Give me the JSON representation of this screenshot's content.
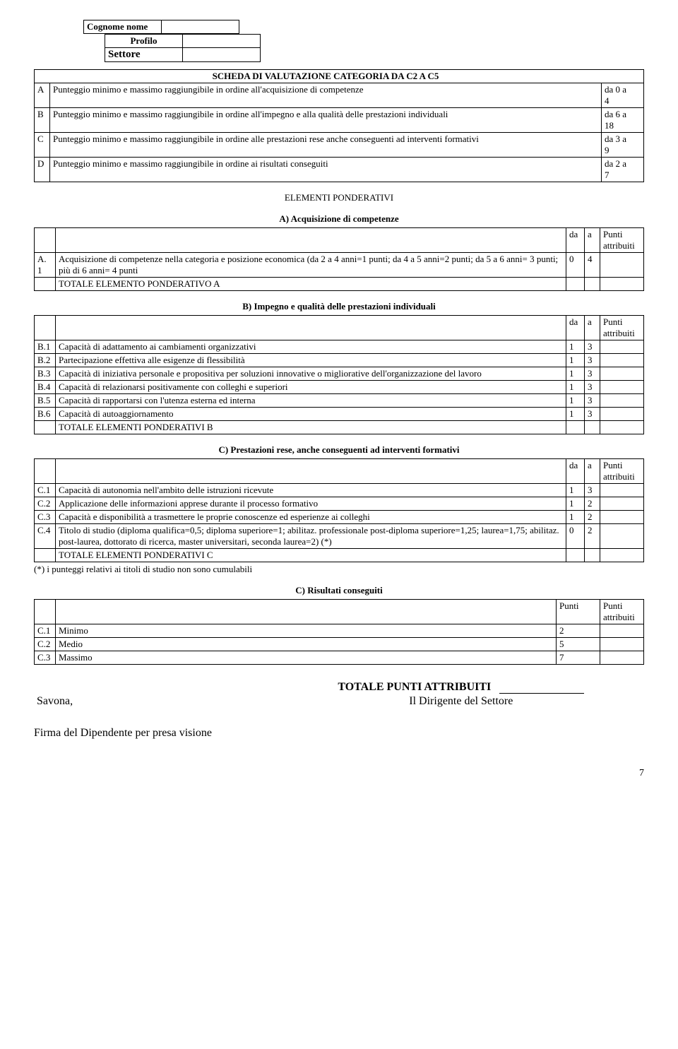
{
  "header": {
    "cognome_label": "Cognome nome",
    "profilo_label": "Profilo",
    "settore_label": "Settore",
    "cognome_val": "",
    "profilo_val": "",
    "settore_val": ""
  },
  "title": "SCHEDA DI VALUTAZIONE CATEGORIA DA C2 A C5",
  "criteria": [
    {
      "id": "A",
      "text": "Punteggio minimo e massimo raggiungibile in ordine all'acquisizione di competenze",
      "range": "da 0 a\n4"
    },
    {
      "id": "B",
      "text": "Punteggio minimo e massimo raggiungibile in ordine all'impegno e alla qualità delle prestazioni individuali",
      "range": "da 6 a\n18"
    },
    {
      "id": "C",
      "text": "Punteggio minimo e massimo raggiungibile in ordine alle prestazioni rese anche conseguenti ad interventi formativi",
      "range": "da 3 a\n9"
    },
    {
      "id": "D",
      "text": "Punteggio minimo e massimo raggiungibile in ordine ai risultati conseguiti",
      "range": "da 2 a\n7"
    }
  ],
  "elementi_title": "ELEMENTI PONDERATIVI",
  "col_da": "da",
  "col_a": "a",
  "col_punti": "Punti attribuiti",
  "col_punti_single": "Punti",
  "sectionA": {
    "title": "A) Acquisizione di competenze",
    "rows": [
      {
        "id": "A.\n1",
        "text": "Acquisizione di competenze nella categoria e posizione economica (da 2 a 4 anni=1 punti; da 4 a 5 anni=2 punti; da 5 a 6 anni= 3 punti; più di 6 anni= 4 punti",
        "da": "0",
        "a": "4"
      }
    ],
    "total": "TOTALE ELEMENTO PONDERATIVO A"
  },
  "sectionB": {
    "title": "B) Impegno e qualità delle prestazioni individuali",
    "rows": [
      {
        "id": "B.1",
        "text": "Capacità di adattamento ai cambiamenti organizzativi",
        "da": "1",
        "a": "3"
      },
      {
        "id": "B.2",
        "text": "Partecipazione effettiva alle esigenze di flessibilità",
        "da": "1",
        "a": "3"
      },
      {
        "id": "B.3",
        "text": "Capacità di iniziativa personale e propositiva per soluzioni innovative o migliorative dell'organizzazione del lavoro",
        "da": "1",
        "a": "3"
      },
      {
        "id": "B.4",
        "text": "Capacità di relazionarsi positivamente con colleghi e superiori",
        "da": "1",
        "a": "3"
      },
      {
        "id": "B.5",
        "text": "Capacità di rapportarsi con l'utenza esterna ed interna",
        "da": "1",
        "a": "3"
      },
      {
        "id": "B.6",
        "text": "Capacità di autoaggiornamento",
        "da": "1",
        "a": "3"
      }
    ],
    "total": "TOTALE ELEMENTI PONDERATIVI B"
  },
  "sectionC": {
    "title": "C) Prestazioni rese, anche conseguenti ad interventi formativi",
    "rows": [
      {
        "id": "C.1",
        "text": "Capacità di autonomia nell'ambito delle istruzioni ricevute",
        "da": "1",
        "a": "3"
      },
      {
        "id": "C.2",
        "text": "Applicazione delle informazioni apprese durante il processo formativo",
        "da": "1",
        "a": "2"
      },
      {
        "id": "C.3",
        "text": "Capacità e disponibilità a trasmettere le proprie conoscenze ed esperienze ai colleghi",
        "da": "1",
        "a": "2"
      },
      {
        "id": "C.4",
        "text": "Titolo di studio (diploma qualifica=0,5; diploma superiore=1; abilitaz. professionale post-diploma superiore=1,25;  laurea=1,75; abilitaz. post-laurea, dottorato di ricerca, master universitari, seconda laurea=2) (*)",
        "da": "0",
        "a": "2"
      }
    ],
    "total": "TOTALE ELEMENTI PONDERATIVI C",
    "note": "(*) i punteggi relativi ai titoli di studio non sono cumulabili"
  },
  "sectionD": {
    "title": "C) Risultati conseguiti",
    "rows": [
      {
        "id": "C.1",
        "text": "Minimo",
        "p": "2"
      },
      {
        "id": "C.2",
        "text": "Medio",
        "p": "5"
      },
      {
        "id": "C.3",
        "text": "Massimo",
        "p": "7"
      }
    ]
  },
  "footer": {
    "totale": "TOTALE PUNTI ATTRIBUITI",
    "savona": "Savona,",
    "dirigente": "Il Dirigente del Settore",
    "firma": "Firma del Dipendente per presa visione",
    "page": "7"
  }
}
